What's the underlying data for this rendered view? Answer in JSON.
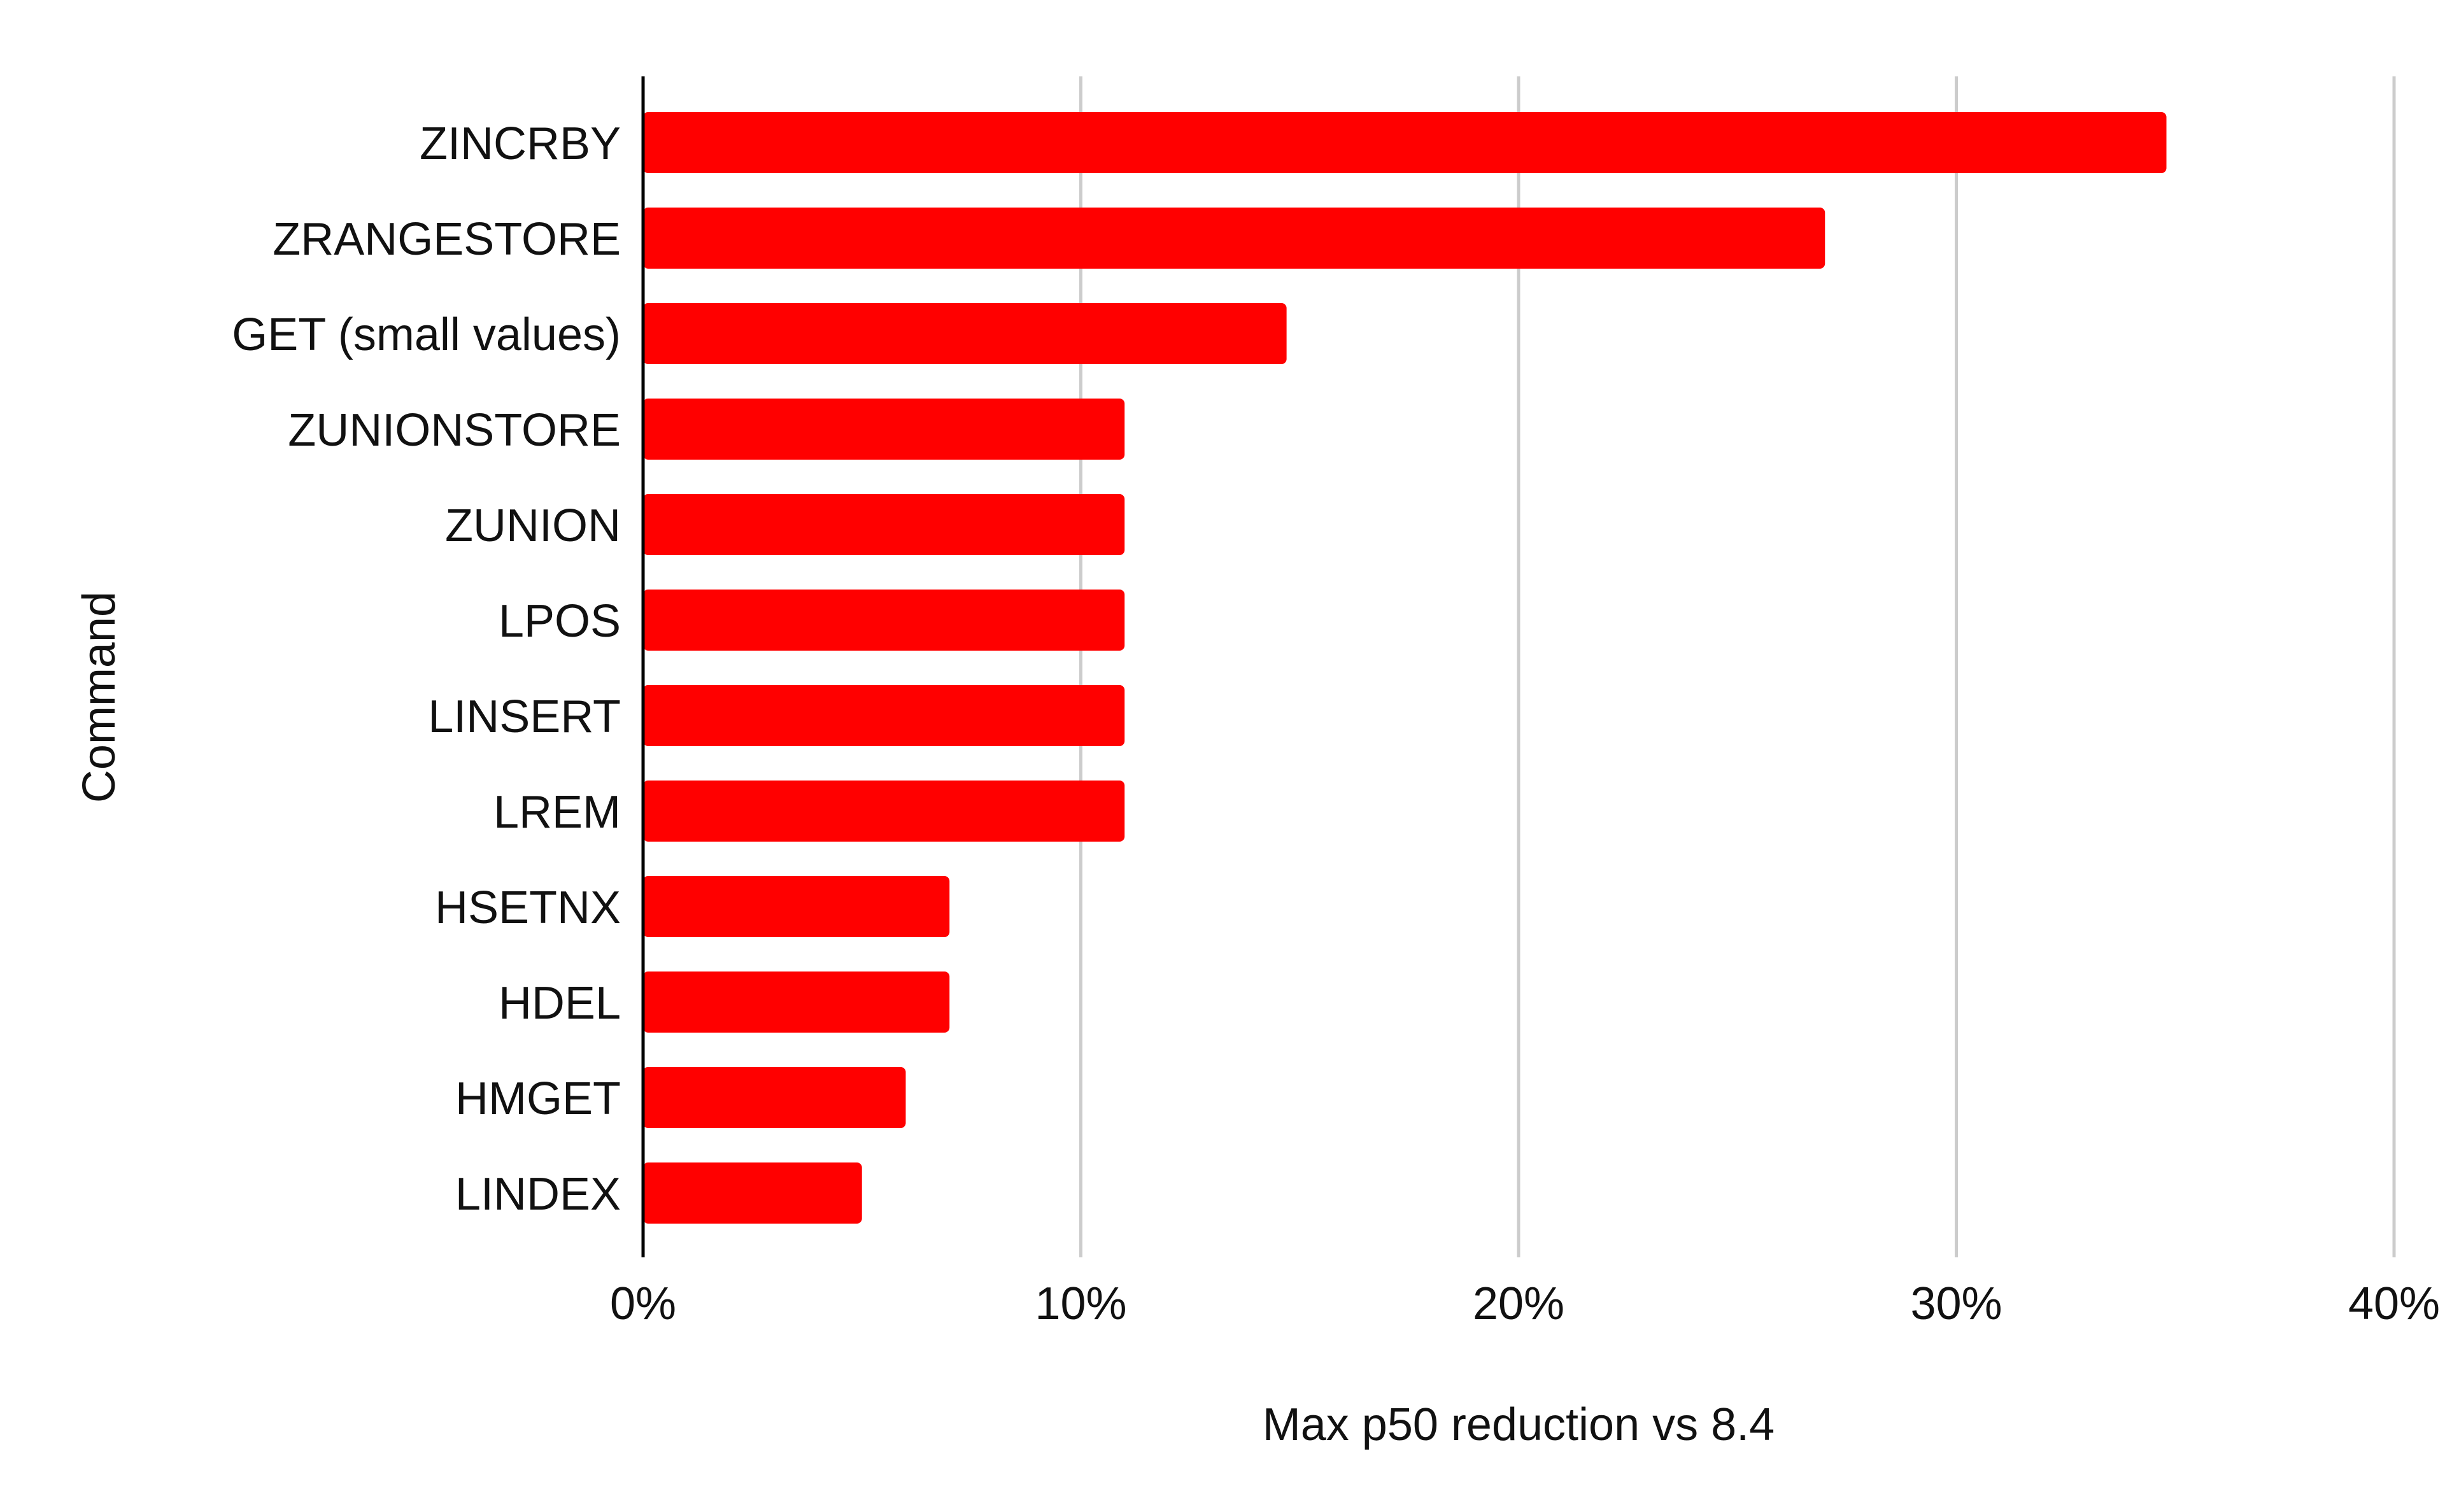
{
  "chart_data": {
    "type": "bar",
    "orientation": "horizontal",
    "title": "",
    "xlabel": "Max p50 reduction vs 8.4",
    "ylabel": "Command",
    "categories": [
      "ZINCRBY",
      "ZRANGESTORE",
      "GET (small values)",
      "ZUNIONSTORE",
      "ZUNION",
      "LPOS",
      "LINSERT",
      "LREM",
      "HSETNX",
      "HDEL",
      "HMGET",
      "LINDEX"
    ],
    "series": [
      {
        "values": [
          34.8,
          27.0,
          14.7,
          11.0,
          11.0,
          11.0,
          11.0,
          11.0,
          7.0,
          7.0,
          6.0,
          5.0
        ]
      }
    ],
    "xlim": [
      0,
      40
    ],
    "xticks": [
      0,
      10,
      20,
      30,
      40
    ],
    "xtick_labels": [
      "0%",
      "10%",
      "20%",
      "30%",
      "40%"
    ],
    "bar_color": "#ff0000",
    "grid": true,
    "legend": "none"
  }
}
